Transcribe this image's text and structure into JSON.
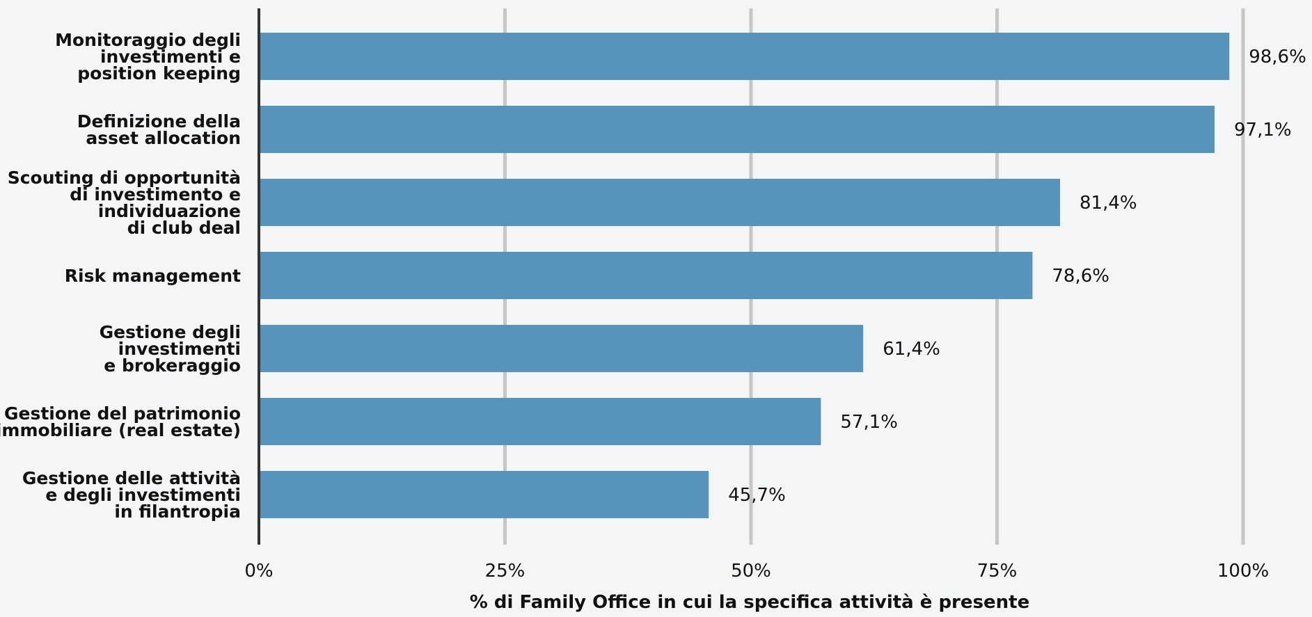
{
  "chart_data": {
    "type": "bar",
    "orientation": "horizontal",
    "categories": [
      [
        "Monitoraggio degli",
        "investimenti e",
        "position keeping"
      ],
      [
        "Definizione della",
        "asset allocation"
      ],
      [
        "Scouting di opportunità",
        "di investimento e",
        "individuazione",
        "di club deal"
      ],
      [
        "Risk management"
      ],
      [
        "Gestione degli",
        "investimenti",
        "e brokeraggio"
      ],
      [
        "Gestione del patrimonio",
        "immobiliare (real estate)"
      ],
      [
        "Gestione delle attività",
        "e degli investimenti",
        "in filantropia"
      ]
    ],
    "values": [
      98.6,
      97.1,
      81.4,
      78.6,
      61.4,
      57.1,
      45.7
    ],
    "value_labels": [
      "98,6%",
      "97,1%",
      "81,4%",
      "78,6%",
      "61,4%",
      "57,1%",
      "45,7%"
    ],
    "xlim": [
      0,
      100
    ],
    "xticks": [
      0,
      25,
      50,
      75,
      100
    ],
    "xtick_labels": [
      "0%",
      "25%",
      "50%",
      "75%",
      "100%"
    ],
    "xlabel": "% di Family Office in cui la specifica attività è presente",
    "ylabel": "",
    "title": "",
    "grid": "vertical",
    "bar_color": "#5793bb",
    "grid_color": "#c6c6c6",
    "axis_color": "#333333",
    "background_color": "#f4f5f7"
  }
}
